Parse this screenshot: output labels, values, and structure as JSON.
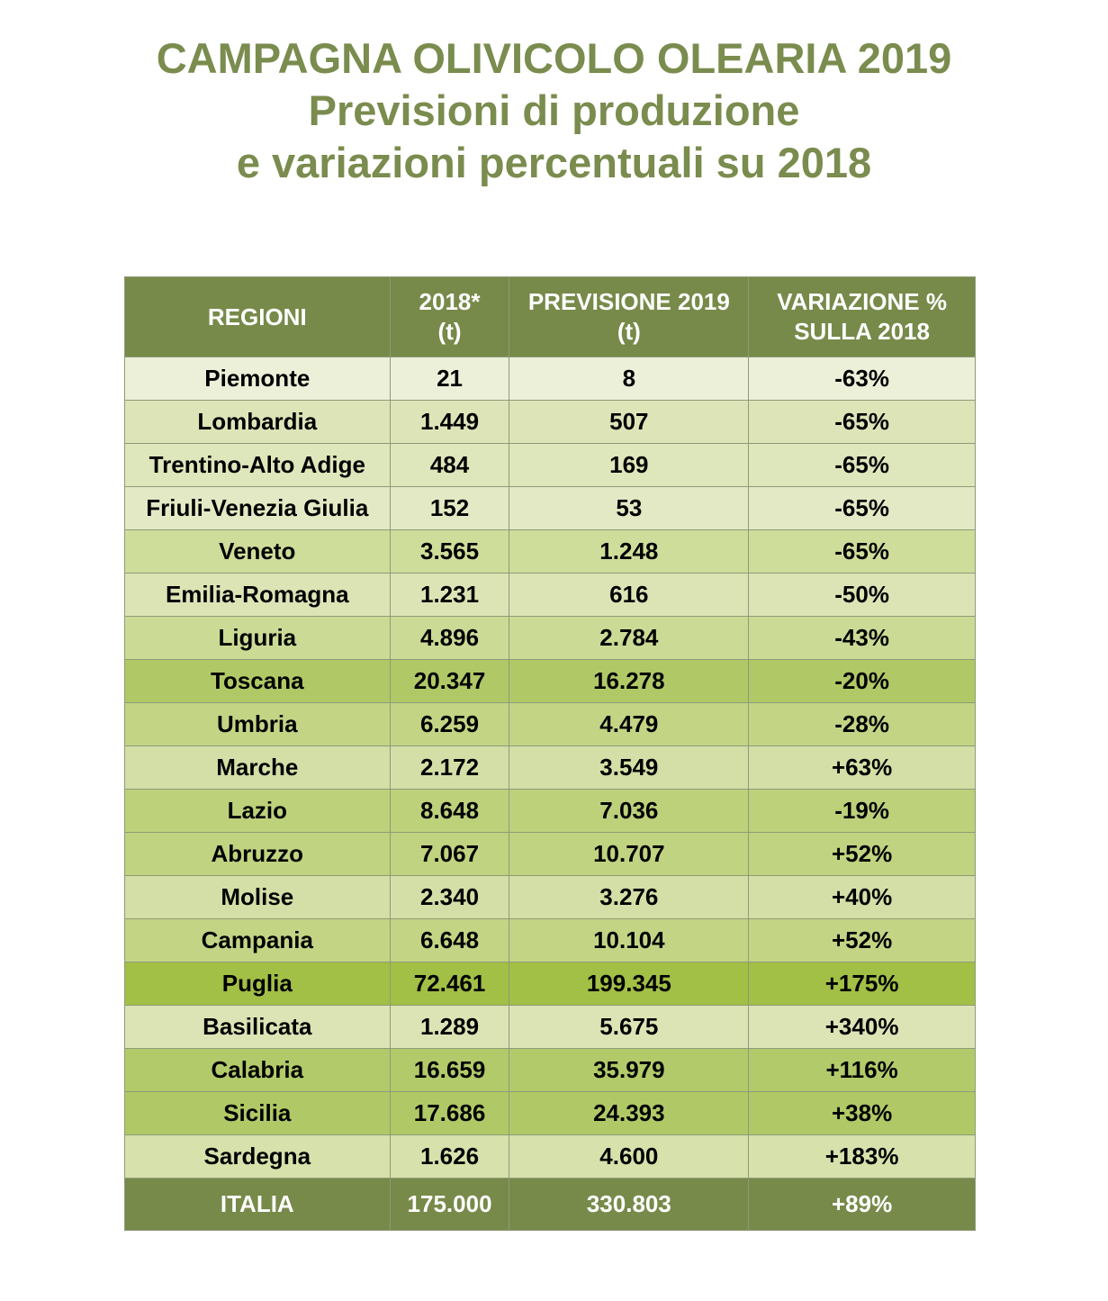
{
  "title": {
    "line1": "CAMPAGNA OLIVICOLO OLEARIA 2019",
    "line2": "Previsioni di produzione",
    "line3": "e variazioni percentuali su 2018"
  },
  "colors": {
    "title": "#7a8c4e",
    "header": "#778a4a"
  },
  "table": {
    "headers": [
      {
        "l1": "REGIONI",
        "l2": ""
      },
      {
        "l1": "2018*",
        "l2": "(t)"
      },
      {
        "l1": "PREVISIONE 2019",
        "l2": "(t)"
      },
      {
        "l1": "VARIAZIONE %",
        "l2": "SULLA 2018"
      }
    ],
    "rows": [
      {
        "region": "Piemonte",
        "y2018": "21",
        "y2019": "8",
        "var": "-63%",
        "color": "#ecf0d8"
      },
      {
        "region": "Lombardia",
        "y2018": "1.449",
        "y2019": "507",
        "var": "-65%",
        "color": "#dde5b8"
      },
      {
        "region": "Trentino-Alto Adige",
        "y2018": "484",
        "y2019": "169",
        "var": "-65%",
        "color": "#dee6bb"
      },
      {
        "region": "Friuli-Venezia Giulia",
        "y2018": "152",
        "y2019": "53",
        "var": "-65%",
        "color": "#e2e9c4"
      },
      {
        "region": "Veneto",
        "y2018": "3.565",
        "y2019": "1.248",
        "var": "-65%",
        "color": "#cedd9a"
      },
      {
        "region": "Emilia-Romagna",
        "y2018": "1.231",
        "y2019": "616",
        "var": "-50%",
        "color": "#dce4b6"
      },
      {
        "region": "Liguria",
        "y2018": "4.896",
        "y2019": "2.784",
        "var": "-43%",
        "color": "#cbdb95"
      },
      {
        "region": "Toscana",
        "y2018": "20.347",
        "y2019": "16.278",
        "var": "-20%",
        "color": "#b0c966"
      },
      {
        "region": "Umbria",
        "y2018": "6.259",
        "y2019": "4.479",
        "var": "-28%",
        "color": "#c3d585"
      },
      {
        "region": "Marche",
        "y2018": "2.172",
        "y2019": "3.549",
        "var": "+63%",
        "color": "#d3dfa6"
      },
      {
        "region": "Lazio",
        "y2018": "8.648",
        "y2019": "7.036",
        "var": "-19%",
        "color": "#bdd17b"
      },
      {
        "region": "Abruzzo",
        "y2018": "7.067",
        "y2019": "10.707",
        "var": "+52%",
        "color": "#c0d380"
      },
      {
        "region": "Molise",
        "y2018": "2.340",
        "y2019": "3.276",
        "var": "+40%",
        "color": "#d3dfa6"
      },
      {
        "region": "Campania",
        "y2018": "6.648",
        "y2019": "10.104",
        "var": "+52%",
        "color": "#c3d585"
      },
      {
        "region": "Puglia",
        "y2018": "72.461",
        "y2019": "199.345",
        "var": "+175%",
        "color": "#a2bf46"
      },
      {
        "region": "Basilicata",
        "y2018": "1.289",
        "y2019": "5.675",
        "var": "+340%",
        "color": "#dce4b6"
      },
      {
        "region": "Calabria",
        "y2018": "16.659",
        "y2019": "35.979",
        "var": "+116%",
        "color": "#b2ca6a"
      },
      {
        "region": "Sicilia",
        "y2018": "17.686",
        "y2019": "24.393",
        "var": "+38%",
        "color": "#b0c966"
      },
      {
        "region": "Sardegna",
        "y2018": "1.626",
        "y2019": "4.600",
        "var": "+183%",
        "color": "#d6e1ab"
      }
    ],
    "total": {
      "region": "ITALIA",
      "y2018": "175.000",
      "y2019": "330.803",
      "var": "+89%"
    }
  }
}
